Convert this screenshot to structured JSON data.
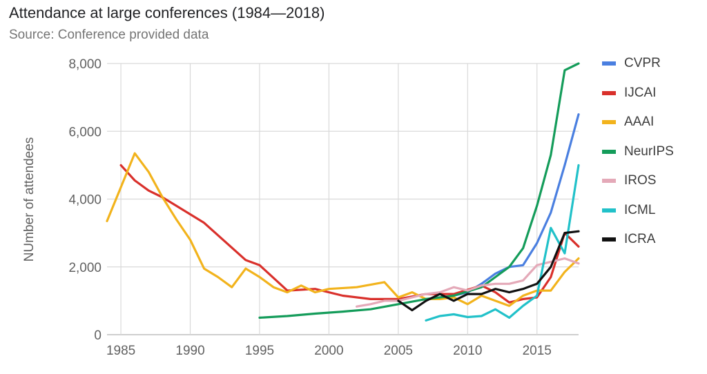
{
  "chart_data": {
    "type": "line",
    "title": "Attendance at large conferences (1984—2018)",
    "subtitle": "Source: Conference provided data",
    "ylabel": "NUmber of attendees",
    "xlabel": "",
    "xlim": [
      1984,
      2018
    ],
    "ylim": [
      0,
      8000
    ],
    "x_ticks": [
      1985,
      1990,
      1995,
      2000,
      2005,
      2010,
      2015
    ],
    "y_ticks": [
      0,
      2000,
      4000,
      6000,
      8000
    ],
    "x_tick_labels": [
      "1985",
      "1990",
      "1995",
      "2000",
      "2005",
      "2010",
      "2015"
    ],
    "y_tick_labels": [
      "0",
      "2,000",
      "4,000",
      "6,000",
      "8,000"
    ],
    "grid": "vertical and horizontal",
    "legend": "right",
    "series": [
      {
        "name": "CVPR",
        "color": "#4a7fe0",
        "points": [
          [
            2008,
            1100
          ],
          [
            2009,
            1150
          ],
          [
            2010,
            1250
          ],
          [
            2011,
            1500
          ],
          [
            2012,
            1800
          ],
          [
            2013,
            2000
          ],
          [
            2014,
            2050
          ],
          [
            2015,
            2700
          ],
          [
            2016,
            3600
          ],
          [
            2017,
            5000
          ],
          [
            2018,
            6500
          ]
        ]
      },
      {
        "name": "IJCAI",
        "color": "#d9302b",
        "points": [
          [
            1985,
            5000
          ],
          [
            1986,
            4550
          ],
          [
            1987,
            4250
          ],
          [
            1988,
            4050
          ],
          [
            1991,
            3300
          ],
          [
            1994,
            2200
          ],
          [
            1995,
            2050
          ],
          [
            1997,
            1300
          ],
          [
            1999,
            1350
          ],
          [
            2001,
            1150
          ],
          [
            2003,
            1050
          ],
          [
            2005,
            1050
          ],
          [
            2007,
            1200
          ],
          [
            2009,
            1200
          ],
          [
            2011,
            1450
          ],
          [
            2012,
            1250
          ],
          [
            2013,
            950
          ],
          [
            2014,
            1050
          ],
          [
            2015,
            1100
          ],
          [
            2016,
            1700
          ],
          [
            2017,
            3000
          ],
          [
            2018,
            2600
          ]
        ]
      },
      {
        "name": "AAAI",
        "color": "#f2b31c",
        "points": [
          [
            1984,
            3350
          ],
          [
            1985,
            4350
          ],
          [
            1986,
            5350
          ],
          [
            1987,
            4800
          ],
          [
            1988,
            4050
          ],
          [
            1989,
            3400
          ],
          [
            1990,
            2800
          ],
          [
            1991,
            1950
          ],
          [
            1992,
            1700
          ],
          [
            1993,
            1400
          ],
          [
            1994,
            1950
          ],
          [
            1995,
            1700
          ],
          [
            1996,
            1400
          ],
          [
            1997,
            1250
          ],
          [
            1998,
            1450
          ],
          [
            1999,
            1250
          ],
          [
            2000,
            1350
          ],
          [
            2002,
            1400
          ],
          [
            2004,
            1550
          ],
          [
            2005,
            1100
          ],
          [
            2006,
            1250
          ],
          [
            2007,
            1050
          ],
          [
            2008,
            1050
          ],
          [
            2009,
            1100
          ],
          [
            2010,
            900
          ],
          [
            2011,
            1150
          ],
          [
            2012,
            1000
          ],
          [
            2013,
            850
          ],
          [
            2014,
            1150
          ],
          [
            2015,
            1300
          ],
          [
            2016,
            1300
          ],
          [
            2017,
            1850
          ],
          [
            2018,
            2250
          ]
        ]
      },
      {
        "name": "NeurIPS",
        "color": "#149c5a",
        "points": [
          [
            1995,
            500
          ],
          [
            1997,
            550
          ],
          [
            1999,
            620
          ],
          [
            2001,
            680
          ],
          [
            2003,
            750
          ],
          [
            2005,
            900
          ],
          [
            2007,
            1050
          ],
          [
            2009,
            1150
          ],
          [
            2011,
            1400
          ],
          [
            2012,
            1700
          ],
          [
            2013,
            2000
          ],
          [
            2014,
            2550
          ],
          [
            2015,
            3800
          ],
          [
            2016,
            5300
          ],
          [
            2017,
            7800
          ],
          [
            2018,
            8000
          ]
        ]
      },
      {
        "name": "IROS",
        "color": "#e4a9b8",
        "points": [
          [
            2002,
            830
          ],
          [
            2003,
            900
          ],
          [
            2004,
            1000
          ],
          [
            2005,
            1000
          ],
          [
            2006,
            1100
          ],
          [
            2007,
            1200
          ],
          [
            2008,
            1250
          ],
          [
            2009,
            1400
          ],
          [
            2010,
            1300
          ],
          [
            2011,
            1450
          ],
          [
            2012,
            1500
          ],
          [
            2013,
            1500
          ],
          [
            2014,
            1600
          ],
          [
            2015,
            2050
          ],
          [
            2016,
            2150
          ],
          [
            2017,
            2250
          ],
          [
            2018,
            2100
          ]
        ]
      },
      {
        "name": "ICML",
        "color": "#21c1c9",
        "points": [
          [
            2007,
            420
          ],
          [
            2008,
            550
          ],
          [
            2009,
            600
          ],
          [
            2010,
            520
          ],
          [
            2011,
            550
          ],
          [
            2012,
            750
          ],
          [
            2013,
            500
          ],
          [
            2014,
            850
          ],
          [
            2015,
            1150
          ],
          [
            2016,
            3150
          ],
          [
            2017,
            2400
          ],
          [
            2018,
            5000
          ]
        ]
      },
      {
        "name": "ICRA",
        "color": "#111111",
        "points": [
          [
            2005,
            1000
          ],
          [
            2006,
            720
          ],
          [
            2007,
            1000
          ],
          [
            2008,
            1200
          ],
          [
            2009,
            1000
          ],
          [
            2010,
            1200
          ],
          [
            2011,
            1200
          ],
          [
            2012,
            1350
          ],
          [
            2013,
            1250
          ],
          [
            2014,
            1350
          ],
          [
            2015,
            1500
          ],
          [
            2016,
            2000
          ],
          [
            2017,
            3000
          ],
          [
            2018,
            3050
          ]
        ]
      }
    ]
  }
}
